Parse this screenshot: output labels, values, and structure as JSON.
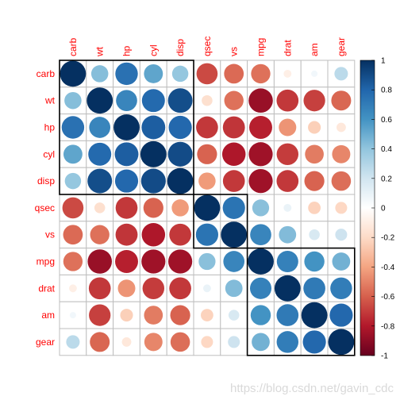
{
  "chart_data": {
    "type": "heatmap",
    "style": "corrplot circles, hierarchical clustering order with rectangles",
    "variables": [
      "carb",
      "wt",
      "hp",
      "cyl",
      "disp",
      "qsec",
      "vs",
      "mpg",
      "drat",
      "am",
      "gear"
    ],
    "matrix": [
      [
        1.0,
        0.43,
        0.75,
        0.53,
        0.39,
        -0.66,
        -0.57,
        -0.55,
        -0.09,
        0.06,
        0.27
      ],
      [
        0.43,
        1.0,
        0.66,
        0.78,
        0.89,
        -0.17,
        -0.55,
        -0.87,
        -0.71,
        -0.69,
        -0.58
      ],
      [
        0.75,
        0.66,
        1.0,
        0.83,
        0.79,
        -0.71,
        -0.72,
        -0.78,
        -0.45,
        -0.24,
        -0.13
      ],
      [
        0.53,
        0.78,
        0.83,
        1.0,
        0.9,
        -0.59,
        -0.81,
        -0.85,
        -0.7,
        -0.52,
        -0.49
      ],
      [
        0.39,
        0.89,
        0.79,
        0.9,
        1.0,
        -0.43,
        -0.71,
        -0.85,
        -0.71,
        -0.59,
        -0.56
      ],
      [
        -0.66,
        -0.17,
        -0.71,
        -0.59,
        -0.43,
        1.0,
        0.74,
        0.42,
        0.09,
        -0.23,
        -0.21
      ],
      [
        -0.57,
        -0.55,
        -0.72,
        -0.81,
        -0.71,
        0.74,
        1.0,
        0.66,
        0.44,
        0.17,
        0.21
      ],
      [
        -0.55,
        -0.87,
        -0.78,
        -0.85,
        -0.85,
        0.42,
        0.66,
        1.0,
        0.68,
        0.6,
        0.48
      ],
      [
        -0.09,
        -0.71,
        -0.45,
        -0.7,
        -0.71,
        0.09,
        0.44,
        0.68,
        1.0,
        0.71,
        0.7
      ],
      [
        0.06,
        -0.69,
        -0.24,
        -0.52,
        -0.59,
        -0.23,
        0.17,
        0.6,
        0.71,
        1.0,
        0.79
      ],
      [
        0.27,
        -0.58,
        -0.13,
        -0.49,
        -0.56,
        -0.21,
        0.21,
        0.48,
        0.7,
        0.79,
        1.0
      ]
    ],
    "clusters": [
      [
        "carb",
        "wt",
        "hp",
        "cyl",
        "disp"
      ],
      [
        "qsec",
        "vs"
      ],
      [
        "mpg",
        "drat",
        "am",
        "gear"
      ]
    ],
    "colorbar": {
      "range": [
        -1,
        1
      ],
      "ticks": [
        "1",
        "0.8",
        "0.6",
        "0.4",
        "0.2",
        "0",
        "-0.2",
        "-0.4",
        "-0.6",
        "-0.8",
        "-1"
      ],
      "colors": [
        "#67001F",
        "#B2182B",
        "#D6604D",
        "#F4A582",
        "#FDDBC7",
        "#FFFFFF",
        "#D1E5F0",
        "#92C5DE",
        "#4393C3",
        "#2166AC",
        "#053061"
      ]
    },
    "label_color": "#FF0000",
    "grid_color": "#BEBEBE",
    "rect_color": "#000000"
  },
  "watermark": "https://blog.csdn.net/gavin_cdc"
}
